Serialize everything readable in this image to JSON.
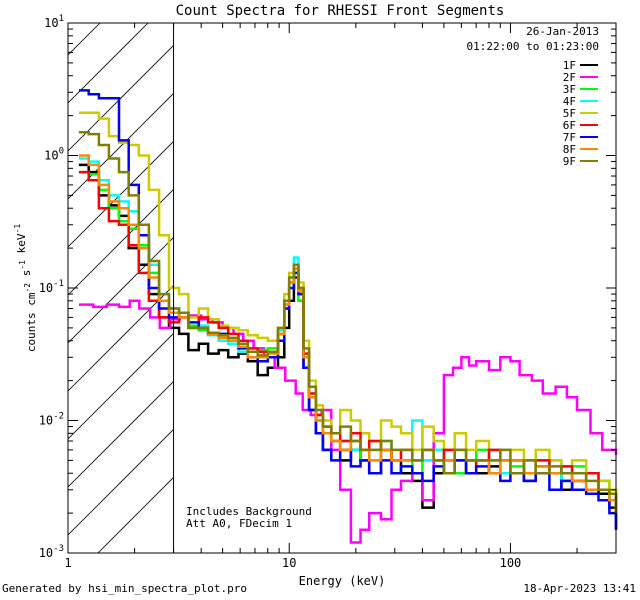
{
  "chart_data": {
    "type": "line",
    "title": "Count Spectra for RHESSI Front Segments",
    "xlabel": "Energy (keV)",
    "ylabel": "counts cm-2 s-1 keV-1",
    "xscale": "log",
    "yscale": "log",
    "xlim": [
      1,
      300
    ],
    "ylim": [
      0.001,
      10
    ],
    "xticks": [
      {
        "value": 1,
        "label": "1"
      },
      {
        "value": 10,
        "label": "10"
      },
      {
        "value": 100,
        "label": "100"
      }
    ],
    "yticks": [
      {
        "value": 0.001,
        "base": "10",
        "exp": "-3"
      },
      {
        "value": 0.01,
        "base": "10",
        "exp": "-2"
      },
      {
        "value": 0.1,
        "base": "10",
        "exp": "-1"
      },
      {
        "value": 1,
        "base": "10",
        "exp": "0"
      },
      {
        "value": 10,
        "base": "10",
        "exp": "1"
      }
    ],
    "info": {
      "date": "26-Jan-2013",
      "time_range": "01:22:00 to 01:23:00"
    },
    "annotations": [
      "Includes Background",
      "Att A0, FDecim 1"
    ],
    "shaded_region": {
      "from": 1,
      "to": 3
    },
    "series": [
      {
        "name": "1F",
        "color": "#000000",
        "x": [
          1.12,
          1.24,
          1.38,
          1.53,
          1.7,
          1.88,
          2.09,
          2.32,
          2.58,
          2.86,
          3.18,
          3.5,
          3.9,
          4.3,
          4.8,
          5.3,
          5.9,
          6.5,
          7.2,
          8.0,
          8.9,
          9.5,
          10.0,
          10.5,
          11.0,
          11.6,
          12.3,
          13.2,
          14.2,
          15.5,
          17,
          19,
          21,
          23,
          26,
          29,
          32,
          36,
          40,
          45,
          50,
          56,
          63,
          70,
          80,
          90,
          100,
          115,
          130,
          150,
          170,
          190,
          220,
          250,
          280,
          300
        ],
        "y": [
          0.85,
          0.75,
          0.5,
          0.42,
          0.35,
          0.2,
          0.15,
          0.09,
          0.06,
          0.05,
          0.045,
          0.034,
          0.038,
          0.032,
          0.034,
          0.03,
          0.032,
          0.028,
          0.022,
          0.025,
          0.03,
          0.05,
          0.08,
          0.12,
          0.09,
          0.025,
          0.012,
          0.008,
          0.006,
          0.007,
          0.005,
          0.006,
          0.005,
          0.004,
          0.006,
          0.005,
          0.004,
          0.0035,
          0.0022,
          0.004,
          0.005,
          0.004,
          0.005,
          0.004,
          0.0045,
          0.004,
          0.005,
          0.0035,
          0.0045,
          0.004,
          0.003,
          0.0035,
          0.003,
          0.0028,
          0.0022,
          0.0015
        ]
      },
      {
        "name": "2F",
        "color": "#ff00ff",
        "x": [
          1.12,
          1.3,
          1.5,
          1.7,
          1.9,
          2.1,
          2.35,
          2.6,
          2.9,
          3.2,
          3.6,
          4.0,
          4.5,
          5.0,
          5.6,
          6.2,
          6.9,
          7.7,
          8.6,
          9.6,
          10.7,
          11.5,
          12.5,
          14,
          15.5,
          17,
          19,
          21,
          23,
          26,
          29,
          32,
          36,
          40,
          45,
          50,
          55,
          60,
          65,
          70,
          80,
          90,
          100,
          110,
          125,
          140,
          160,
          180,
          200,
          230,
          260,
          300
        ],
        "y": [
          0.075,
          0.072,
          0.075,
          0.072,
          0.08,
          0.07,
          0.06,
          0.05,
          0.058,
          0.06,
          0.062,
          0.058,
          0.055,
          0.05,
          0.045,
          0.04,
          0.035,
          0.03,
          0.025,
          0.02,
          0.016,
          0.012,
          0.011,
          0.012,
          0.006,
          0.003,
          0.0012,
          0.0015,
          0.002,
          0.0018,
          0.003,
          0.0035,
          0.004,
          0.0025,
          0.008,
          0.022,
          0.025,
          0.03,
          0.026,
          0.028,
          0.024,
          0.03,
          0.028,
          0.022,
          0.02,
          0.016,
          0.018,
          0.015,
          0.012,
          0.008,
          0.006,
          0.0055
        ]
      },
      {
        "name": "3F",
        "color": "#00ff00",
        "x": [
          1.12,
          1.24,
          1.38,
          1.53,
          1.7,
          1.88,
          2.09,
          2.32,
          2.58,
          2.86,
          3.18,
          3.5,
          3.9,
          4.3,
          4.8,
          5.3,
          5.9,
          6.5,
          7.2,
          8.0,
          8.9,
          9.5,
          10.0,
          10.5,
          11.0,
          11.6,
          12.3,
          13.2,
          14.2,
          15.5,
          17,
          19,
          21,
          23,
          26,
          29,
          32,
          36,
          40,
          45,
          50,
          56,
          63,
          70,
          80,
          90,
          100,
          115,
          130,
          150,
          170,
          190,
          220,
          250,
          280,
          300
        ],
        "y": [
          0.75,
          0.72,
          0.55,
          0.4,
          0.32,
          0.28,
          0.21,
          0.13,
          0.08,
          0.07,
          0.065,
          0.052,
          0.048,
          0.046,
          0.04,
          0.042,
          0.036,
          0.03,
          0.034,
          0.035,
          0.045,
          0.07,
          0.1,
          0.13,
          0.08,
          0.03,
          0.015,
          0.01,
          0.008,
          0.007,
          0.006,
          0.007,
          0.005,
          0.006,
          0.006,
          0.005,
          0.005,
          0.004,
          0.005,
          0.006,
          0.005,
          0.004,
          0.005,
          0.006,
          0.004,
          0.005,
          0.0045,
          0.004,
          0.005,
          0.004,
          0.0035,
          0.0045,
          0.003,
          0.0035,
          0.0025,
          0.002
        ]
      },
      {
        "name": "4F",
        "color": "#00ffff",
        "x": [
          1.12,
          1.24,
          1.38,
          1.53,
          1.7,
          1.88,
          2.09,
          2.32,
          2.58,
          2.86,
          3.18,
          3.5,
          3.9,
          4.3,
          4.8,
          5.3,
          5.9,
          6.5,
          7.2,
          8.0,
          8.9,
          9.5,
          10.0,
          10.5,
          11.0,
          11.6,
          12.3,
          13.2,
          14.2,
          15.5,
          17,
          19,
          21,
          23,
          26,
          29,
          32,
          36,
          40,
          45,
          50,
          56,
          63,
          70,
          80,
          90,
          100,
          115,
          130,
          150,
          170,
          190,
          220,
          250,
          280,
          300
        ],
        "y": [
          0.95,
          0.9,
          0.65,
          0.5,
          0.45,
          0.38,
          0.25,
          0.15,
          0.09,
          0.07,
          0.06,
          0.05,
          0.052,
          0.044,
          0.04,
          0.038,
          0.033,
          0.03,
          0.03,
          0.033,
          0.048,
          0.08,
          0.12,
          0.17,
          0.09,
          0.03,
          0.016,
          0.011,
          0.009,
          0.008,
          0.007,
          0.006,
          0.006,
          0.005,
          0.007,
          0.006,
          0.005,
          0.01,
          0.005,
          0.006,
          0.005,
          0.006,
          0.004,
          0.005,
          0.006,
          0.004,
          0.005,
          0.005,
          0.004,
          0.005,
          0.0035,
          0.004,
          0.003,
          0.003,
          0.0025,
          0.002
        ]
      },
      {
        "name": "5F",
        "color": "#cccc00",
        "x": [
          1.12,
          1.24,
          1.38,
          1.53,
          1.7,
          1.88,
          2.09,
          2.32,
          2.58,
          2.86,
          3.18,
          3.5,
          3.9,
          4.3,
          4.8,
          5.3,
          5.9,
          6.5,
          7.2,
          8.0,
          8.9,
          9.5,
          10.0,
          10.5,
          11.0,
          11.6,
          12.3,
          13.2,
          14.2,
          15.5,
          17,
          19,
          21,
          23,
          26,
          29,
          32,
          36,
          40,
          45,
          50,
          56,
          63,
          70,
          80,
          90,
          100,
          115,
          130,
          150,
          170,
          190,
          220,
          250,
          280,
          300
        ],
        "y": [
          2.1,
          2.1,
          1.9,
          1.4,
          1.25,
          1.2,
          1.0,
          0.55,
          0.25,
          0.1,
          0.09,
          0.06,
          0.07,
          0.058,
          0.052,
          0.05,
          0.048,
          0.044,
          0.042,
          0.04,
          0.05,
          0.09,
          0.13,
          0.15,
          0.11,
          0.04,
          0.02,
          0.013,
          0.01,
          0.008,
          0.012,
          0.01,
          0.008,
          0.007,
          0.01,
          0.009,
          0.008,
          0.006,
          0.009,
          0.007,
          0.006,
          0.008,
          0.006,
          0.007,
          0.005,
          0.006,
          0.006,
          0.005,
          0.006,
          0.005,
          0.0045,
          0.005,
          0.004,
          0.0035,
          0.003,
          0.0025
        ]
      },
      {
        "name": "6F",
        "color": "#ff0000",
        "x": [
          1.12,
          1.24,
          1.38,
          1.53,
          1.7,
          1.88,
          2.09,
          2.32,
          2.58,
          2.86,
          3.18,
          3.5,
          3.9,
          4.3,
          4.8,
          5.3,
          5.9,
          6.5,
          7.2,
          8.0,
          8.9,
          9.5,
          10.0,
          10.5,
          11.0,
          11.6,
          12.3,
          13.2,
          14.2,
          15.5,
          17,
          19,
          21,
          23,
          26,
          29,
          32,
          36,
          40,
          45,
          50,
          56,
          63,
          70,
          80,
          90,
          100,
          115,
          130,
          150,
          170,
          190,
          220,
          250,
          280,
          300
        ],
        "y": [
          0.75,
          0.65,
          0.4,
          0.32,
          0.3,
          0.21,
          0.13,
          0.08,
          0.06,
          0.055,
          0.06,
          0.05,
          0.06,
          0.055,
          0.05,
          0.045,
          0.04,
          0.035,
          0.033,
          0.03,
          0.045,
          0.075,
          0.11,
          0.14,
          0.1,
          0.032,
          0.016,
          0.011,
          0.009,
          0.008,
          0.007,
          0.008,
          0.006,
          0.007,
          0.006,
          0.005,
          0.006,
          0.005,
          0.006,
          0.005,
          0.006,
          0.005,
          0.004,
          0.005,
          0.006,
          0.005,
          0.005,
          0.004,
          0.005,
          0.004,
          0.0045,
          0.0035,
          0.004,
          0.003,
          0.0028,
          0.002
        ]
      },
      {
        "name": "7F",
        "color": "#0000ff",
        "x": [
          1.12,
          1.24,
          1.38,
          1.53,
          1.7,
          1.88,
          2.09,
          2.32,
          2.58,
          2.86,
          3.18,
          3.5,
          3.9,
          4.3,
          4.8,
          5.3,
          5.9,
          6.5,
          7.2,
          8.0,
          8.9,
          9.5,
          10.0,
          10.5,
          11.0,
          11.6,
          12.3,
          13.2,
          14.2,
          15.5,
          17,
          19,
          21,
          23,
          26,
          29,
          32,
          36,
          40,
          45,
          50,
          56,
          63,
          70,
          80,
          90,
          100,
          115,
          130,
          150,
          170,
          190,
          220,
          250,
          280,
          300
        ],
        "y": [
          3.1,
          2.9,
          2.7,
          2.7,
          1.3,
          0.6,
          0.25,
          0.1,
          0.07,
          0.06,
          0.065,
          0.055,
          0.05,
          0.045,
          0.045,
          0.04,
          0.035,
          0.03,
          0.028,
          0.03,
          0.04,
          0.07,
          0.1,
          0.13,
          0.09,
          0.025,
          0.012,
          0.008,
          0.006,
          0.005,
          0.006,
          0.0045,
          0.005,
          0.004,
          0.005,
          0.004,
          0.0045,
          0.004,
          0.0035,
          0.0045,
          0.004,
          0.005,
          0.004,
          0.0045,
          0.004,
          0.0035,
          0.004,
          0.0035,
          0.004,
          0.003,
          0.0035,
          0.003,
          0.0028,
          0.0025,
          0.002,
          0.0015
        ]
      },
      {
        "name": "8F",
        "color": "#ff8800",
        "x": [
          1.12,
          1.24,
          1.38,
          1.53,
          1.7,
          1.88,
          2.09,
          2.32,
          2.58,
          2.86,
          3.18,
          3.5,
          3.9,
          4.3,
          4.8,
          5.3,
          5.9,
          6.5,
          7.2,
          8.0,
          8.9,
          9.5,
          10.0,
          10.5,
          11.0,
          11.6,
          12.3,
          13.2,
          14.2,
          15.5,
          17,
          19,
          21,
          23,
          26,
          29,
          32,
          36,
          40,
          45,
          50,
          56,
          63,
          70,
          80,
          90,
          100,
          115,
          130,
          150,
          170,
          190,
          220,
          250,
          280,
          300
        ],
        "y": [
          1.0,
          0.85,
          0.6,
          0.45,
          0.4,
          0.3,
          0.2,
          0.12,
          0.08,
          0.065,
          0.06,
          0.05,
          0.05,
          0.045,
          0.042,
          0.04,
          0.036,
          0.03,
          0.03,
          0.032,
          0.045,
          0.075,
          0.11,
          0.14,
          0.095,
          0.03,
          0.015,
          0.01,
          0.008,
          0.007,
          0.006,
          0.007,
          0.006,
          0.005,
          0.006,
          0.005,
          0.005,
          0.005,
          0.006,
          0.005,
          0.005,
          0.006,
          0.005,
          0.005,
          0.004,
          0.005,
          0.005,
          0.004,
          0.0045,
          0.004,
          0.004,
          0.0035,
          0.003,
          0.003,
          0.0025,
          0.002
        ]
      },
      {
        "name": "9F",
        "color": "#808000",
        "x": [
          1.12,
          1.24,
          1.38,
          1.53,
          1.7,
          1.88,
          2.09,
          2.32,
          2.58,
          2.86,
          3.18,
          3.5,
          3.9,
          4.3,
          4.8,
          5.3,
          5.9,
          6.5,
          7.2,
          8.0,
          8.9,
          9.5,
          10.0,
          10.5,
          11.0,
          11.6,
          12.3,
          13.2,
          14.2,
          15.5,
          17,
          19,
          21,
          23,
          26,
          29,
          32,
          36,
          40,
          45,
          50,
          56,
          63,
          70,
          80,
          90,
          100,
          115,
          130,
          150,
          170,
          190,
          220,
          250,
          280,
          300
        ],
        "y": [
          1.5,
          1.45,
          1.2,
          0.95,
          0.75,
          0.5,
          0.3,
          0.16,
          0.09,
          0.07,
          0.065,
          0.05,
          0.05,
          0.046,
          0.044,
          0.042,
          0.038,
          0.033,
          0.031,
          0.033,
          0.05,
          0.08,
          0.12,
          0.15,
          0.1,
          0.035,
          0.018,
          0.012,
          0.009,
          0.008,
          0.009,
          0.007,
          0.006,
          0.006,
          0.007,
          0.006,
          0.006,
          0.005,
          0.006,
          0.005,
          0.004,
          0.006,
          0.005,
          0.005,
          0.005,
          0.006,
          0.004,
          0.005,
          0.004,
          0.0045,
          0.004,
          0.004,
          0.0035,
          0.003,
          0.0028,
          0.002
        ]
      }
    ]
  },
  "footer": {
    "left": "Generated by hsi_min_spectra_plot.pro",
    "right": "18-Apr-2023 13:41"
  }
}
